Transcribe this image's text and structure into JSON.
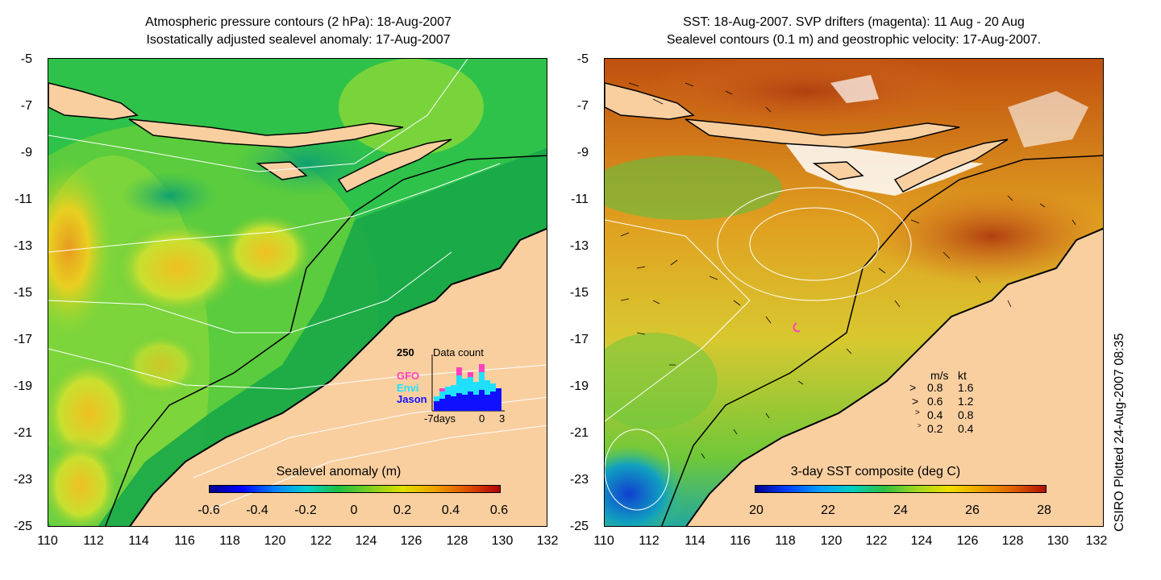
{
  "left_panel": {
    "title_line1": "Atmospheric pressure contours (2 hPa): 18-Aug-2007",
    "title_line2": "Isostatically adjusted sealevel anomaly: 17-Aug-2007",
    "colorbar_label": "Sealevel anomaly (m)",
    "colorbar_ticks": [
      "-0.6",
      "-0.4",
      "-0.2",
      "0",
      "0.2",
      "0.4",
      "0.6"
    ],
    "inset": {
      "max_label": "250",
      "title": "Data count",
      "series": [
        {
          "name": "GFO",
          "color": "#ff40c0"
        },
        {
          "name": "Envi",
          "color": "#20e0ff"
        },
        {
          "name": "Jason",
          "color": "#1010ff"
        }
      ],
      "x_labels": [
        "-7days",
        "0",
        "3"
      ]
    }
  },
  "right_panel": {
    "title_line1": "SST: 18-Aug-2007. SVP drifters (magenta): 11 Aug - 20 Aug",
    "title_line2": "Sealevel contours (0.1 m) and geostrophic velocity: 17-Aug-2007.",
    "colorbar_label": "3-day SST composite (deg C)",
    "colorbar_ticks": [
      "20",
      "22",
      "24",
      "26",
      "28"
    ],
    "velocity_legend": {
      "header_ms": "m/s",
      "header_kt": "kt",
      "rows": [
        {
          "ms": "0.8",
          "kt": "1.6"
        },
        {
          "ms": "0.6",
          "kt": "1.2"
        },
        {
          "ms": "0.4",
          "kt": "0.8"
        },
        {
          "ms": "0.2",
          "kt": "0.4"
        }
      ]
    }
  },
  "axes": {
    "y_ticks": [
      "-5",
      "-7",
      "-9",
      "-11",
      "-13",
      "-15",
      "-17",
      "-19",
      "-21",
      "-23",
      "-25"
    ],
    "x_ticks": [
      "110",
      "112",
      "114",
      "116",
      "118",
      "120",
      "122",
      "124",
      "126",
      "128",
      "130",
      "132"
    ]
  },
  "credit": "CSIRO Plotted 24-Aug-2007 08:35",
  "colors": {
    "land": "#f9cfa0",
    "sla_background": "#2ec24a",
    "sst_background": "#e8a020"
  }
}
